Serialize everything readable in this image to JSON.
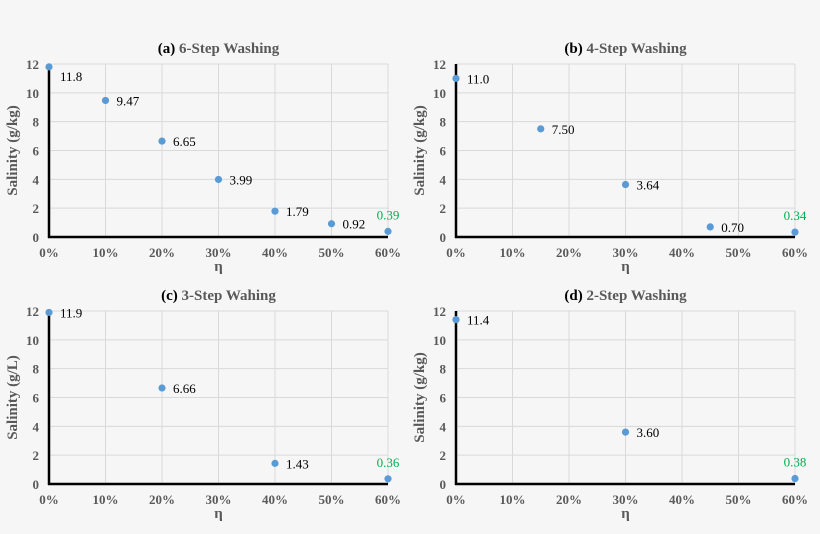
{
  "chart_data": [
    {
      "type": "scatter",
      "title_prefix": "(a)",
      "title": "6-Step Washing",
      "xlabel": "η",
      "ylabel": "Salinity (g/kg)",
      "xlim": [
        0,
        60
      ],
      "ylim": [
        0,
        12
      ],
      "grid": true,
      "xticks": [
        "0%",
        "10%",
        "20%",
        "30%",
        "40%",
        "50%",
        "60%"
      ],
      "yticks": [
        "0",
        "2",
        "4",
        "6",
        "8",
        "10",
        "12"
      ],
      "x": [
        0,
        10,
        20,
        30,
        40,
        50,
        60
      ],
      "y": [
        11.8,
        9.47,
        6.65,
        3.99,
        1.79,
        0.92,
        0.39
      ],
      "labels": [
        "11.8",
        "9.47",
        "6.65",
        "3.99",
        "1.79",
        "0.92",
        "0.39"
      ]
    },
    {
      "type": "scatter",
      "title_prefix": "(b)",
      "title": "4-Step Washing",
      "xlabel": "η",
      "ylabel": "Salinity (g/kg)",
      "xlim": [
        0,
        60
      ],
      "ylim": [
        0,
        12
      ],
      "grid": true,
      "xticks": [
        "0%",
        "10%",
        "20%",
        "30%",
        "40%",
        "50%",
        "60%"
      ],
      "yticks": [
        "0",
        "2",
        "4",
        "6",
        "8",
        "10",
        "12"
      ],
      "x": [
        0,
        15,
        30,
        45,
        60
      ],
      "y": [
        11.0,
        7.5,
        3.64,
        0.7,
        0.34
      ],
      "labels": [
        "11.0",
        "7.50",
        "3.64",
        "0.70",
        "0.34"
      ]
    },
    {
      "type": "scatter",
      "title_prefix": "(c)",
      "title": "3-Step Wahing",
      "xlabel": "η",
      "ylabel": "Salinity (g/L)",
      "xlim": [
        0,
        60
      ],
      "ylim": [
        0,
        12
      ],
      "grid": true,
      "xticks": [
        "0%",
        "10%",
        "20%",
        "30%",
        "40%",
        "50%",
        "60%"
      ],
      "yticks": [
        "0",
        "2",
        "4",
        "6",
        "8",
        "10",
        "12"
      ],
      "x": [
        0,
        20,
        40,
        60
      ],
      "y": [
        11.9,
        6.66,
        1.43,
        0.36
      ],
      "labels": [
        "11.9",
        "6.66",
        "1.43",
        "0.36"
      ]
    },
    {
      "type": "scatter",
      "title_prefix": "(d)",
      "title": "2-Step Washing",
      "xlabel": "η",
      "ylabel": "Salinity (g/kg)",
      "xlim": [
        0,
        60
      ],
      "ylim": [
        0,
        12
      ],
      "grid": true,
      "xticks": [
        "0%",
        "10%",
        "20%",
        "30%",
        "40%",
        "50%",
        "60%"
      ],
      "yticks": [
        "0",
        "2",
        "4",
        "6",
        "8",
        "10",
        "12"
      ],
      "x": [
        0,
        30,
        60
      ],
      "y": [
        11.4,
        3.6,
        0.38
      ],
      "labels": [
        "11.4",
        "3.60",
        "0.38"
      ]
    }
  ],
  "colors": {
    "point": "#5b9bd5",
    "last_label": "#00b050",
    "label": "#000000",
    "axis_text": "#595959",
    "grid": "#d9d9d9"
  }
}
